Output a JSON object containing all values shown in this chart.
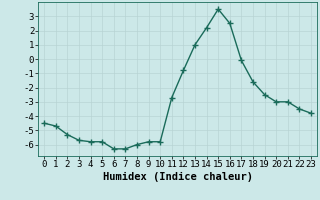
{
  "x": [
    0,
    1,
    2,
    3,
    4,
    5,
    6,
    7,
    8,
    9,
    10,
    11,
    12,
    13,
    14,
    15,
    16,
    17,
    18,
    19,
    20,
    21,
    22,
    23
  ],
  "y": [
    -4.5,
    -4.7,
    -5.3,
    -5.7,
    -5.8,
    -5.8,
    -6.3,
    -6.3,
    -6.0,
    -5.8,
    -5.8,
    -2.7,
    -0.8,
    1.0,
    2.2,
    3.5,
    2.5,
    -0.1,
    -1.6,
    -2.5,
    -3.0,
    -3.0,
    -3.5,
    -3.8
  ],
  "line_color": "#1a6b5a",
  "marker": "+",
  "marker_size": 4,
  "marker_lw": 1.0,
  "bg_color": "#cce8e8",
  "grid_color": "#b8d4d4",
  "xlabel": "Humidex (Indice chaleur)",
  "xlabel_fontsize": 7.5,
  "xlim": [
    -0.5,
    23.5
  ],
  "ylim": [
    -6.8,
    4.0
  ],
  "yticks": [
    -6,
    -5,
    -4,
    -3,
    -2,
    -1,
    0,
    1,
    2,
    3
  ],
  "xticks": [
    0,
    1,
    2,
    3,
    4,
    5,
    6,
    7,
    8,
    9,
    10,
    11,
    12,
    13,
    14,
    15,
    16,
    17,
    18,
    19,
    20,
    21,
    22,
    23
  ],
  "tick_label_fontsize": 6.5,
  "line_width": 1.0
}
